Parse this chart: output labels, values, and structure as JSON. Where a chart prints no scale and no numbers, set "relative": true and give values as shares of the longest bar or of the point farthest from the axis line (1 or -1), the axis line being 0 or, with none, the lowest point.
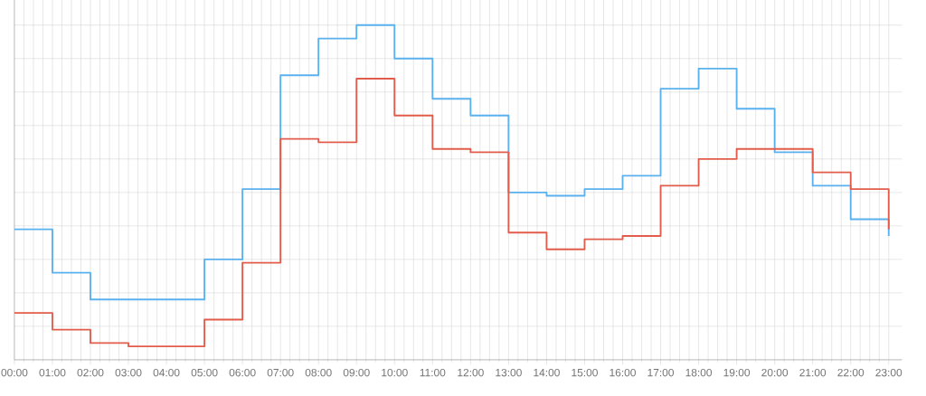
{
  "chart_data": {
    "type": "step",
    "relative": true,
    "grid": true,
    "x": [
      0,
      1,
      2,
      3,
      4,
      5,
      6,
      7,
      8,
      9,
      10,
      11,
      12,
      13,
      14,
      15,
      16,
      17,
      18,
      19,
      20,
      21,
      22,
      23
    ],
    "xlim": [
      0,
      23.35
    ],
    "xticks": [
      {
        "value": 0,
        "label": "00:00"
      },
      {
        "value": 1,
        "label": "01:00"
      },
      {
        "value": 2,
        "label": "02:00"
      },
      {
        "value": 3,
        "label": "03:00"
      },
      {
        "value": 4,
        "label": "04:00"
      },
      {
        "value": 5,
        "label": "05:00"
      },
      {
        "value": 6,
        "label": "06:00"
      },
      {
        "value": 7,
        "label": "07:00"
      },
      {
        "value": 8,
        "label": "08:00"
      },
      {
        "value": 9,
        "label": "09:00"
      },
      {
        "value": 10,
        "label": "10:00"
      },
      {
        "value": 11,
        "label": "11:00"
      },
      {
        "value": 12,
        "label": "12:00"
      },
      {
        "value": 13,
        "label": "13:00"
      },
      {
        "value": 14,
        "label": "14:00"
      },
      {
        "value": 15,
        "label": "15:00"
      },
      {
        "value": 16,
        "label": "16:00"
      },
      {
        "value": 17,
        "label": "17:00"
      },
      {
        "value": 18,
        "label": "18:00"
      },
      {
        "value": 19,
        "label": "19:00"
      },
      {
        "value": 20,
        "label": "20:00"
      },
      {
        "value": 21,
        "label": "21:00"
      },
      {
        "value": 22,
        "label": "22:00"
      },
      {
        "value": 23,
        "label": "23:00"
      }
    ],
    "series": [
      {
        "color": "#5ab1ee",
        "values": [
          0.39,
          0.26,
          0.18,
          0.18,
          0.18,
          0.3,
          0.51,
          0.85,
          0.96,
          1.0,
          0.9,
          0.78,
          0.73,
          0.5,
          0.49,
          0.51,
          0.55,
          0.81,
          0.87,
          0.75,
          0.62,
          0.52,
          0.42,
          0.37
        ]
      },
      {
        "color": "#e25c4b",
        "values": [
          0.14,
          0.09,
          0.05,
          0.04,
          0.04,
          0.12,
          0.29,
          0.66,
          0.65,
          0.84,
          0.73,
          0.63,
          0.62,
          0.38,
          0.33,
          0.36,
          0.37,
          0.52,
          0.6,
          0.63,
          0.63,
          0.56,
          0.51,
          0.39
        ]
      }
    ]
  }
}
